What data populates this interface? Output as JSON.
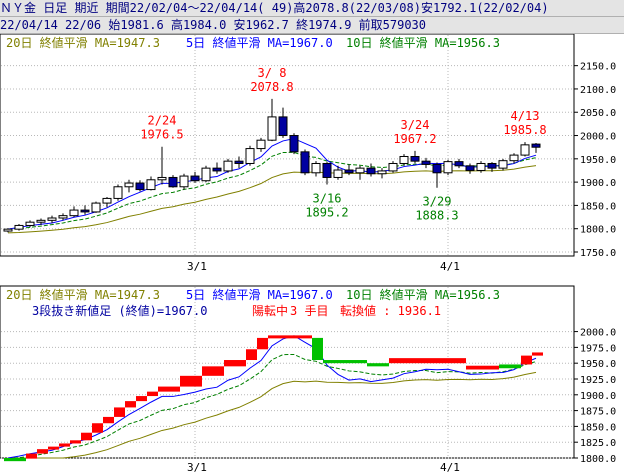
{
  "header": {
    "line1": "ＮＹ金 日足 期近 期間22/02/04～22/04/14( 49)高2078.8(22/03/08)安1792.1(22/02/04)",
    "line2": "22/04/14 22/06 始1981.6 高1984.0 安1962.7 終1974.9 前取579030"
  },
  "colors": {
    "ma20": "#808000",
    "ma5": "#0000ff",
    "ma10": "#008000",
    "up": "#ffffff",
    "down": "#0000a0",
    "annot_high": "#ff0000",
    "annot_low": "#008000",
    "brick_up": "#ff0000",
    "brick_down": "#00c000",
    "grid": "#b8b8b8",
    "axis": "#000000"
  },
  "chart_data": [
    {
      "type": "candlestick",
      "legend": [
        {
          "text": "20日 終値平滑 MA=1947.3",
          "color_key": "ma20"
        },
        {
          "text": "5日 終値平滑 MA=1967.0",
          "color_key": "ma5"
        },
        {
          "text": "10日 終値平滑 MA=1956.3",
          "color_key": "ma10"
        }
      ],
      "ylim": [
        1750,
        2175
      ],
      "y_ticks": [
        1750,
        1800,
        1850,
        1900,
        1950,
        2000,
        2050,
        2100,
        2150
      ],
      "y_tick_labels": [
        "1750.0",
        "1800.0",
        "1850.0",
        "1900.0",
        "1950.0",
        "2000.0",
        "2050.0",
        "2100.0",
        "2150.0"
      ],
      "x_ticks": [
        {
          "index": 17,
          "label": "3/1"
        },
        {
          "index": 40,
          "label": "4/1"
        }
      ],
      "candles": [
        [
          1795,
          1801,
          1792,
          1799
        ],
        [
          1799,
          1810,
          1796,
          1807
        ],
        [
          1807,
          1818,
          1803,
          1814
        ],
        [
          1814,
          1822,
          1808,
          1818
        ],
        [
          1818,
          1828,
          1812,
          1823
        ],
        [
          1823,
          1833,
          1818,
          1828
        ],
        [
          1828,
          1848,
          1825,
          1840
        ],
        [
          1840,
          1850,
          1830,
          1836
        ],
        [
          1836,
          1858,
          1834,
          1855
        ],
        [
          1855,
          1868,
          1846,
          1865
        ],
        [
          1865,
          1895,
          1860,
          1890
        ],
        [
          1890,
          1905,
          1878,
          1898
        ],
        [
          1898,
          1904,
          1880,
          1884
        ],
        [
          1884,
          1912,
          1882,
          1905
        ],
        [
          1905,
          1976,
          1895,
          1910
        ],
        [
          1910,
          1915,
          1888,
          1890
        ],
        [
          1890,
          1918,
          1884,
          1913
        ],
        [
          1913,
          1922,
          1898,
          1903
        ],
        [
          1903,
          1935,
          1900,
          1930
        ],
        [
          1930,
          1942,
          1918,
          1924
        ],
        [
          1924,
          1950,
          1920,
          1945
        ],
        [
          1945,
          1955,
          1930,
          1940
        ],
        [
          1940,
          1978,
          1935,
          1972
        ],
        [
          1972,
          1995,
          1965,
          1990
        ],
        [
          1990,
          2078.8,
          1988,
          2040
        ],
        [
          2040,
          2060,
          1995,
          2000
        ],
        [
          2000,
          2005,
          1960,
          1965
        ],
        [
          1965,
          1970,
          1915,
          1920
        ],
        [
          1920,
          1945,
          1912,
          1940
        ],
        [
          1940,
          1943,
          1895,
          1910
        ],
        [
          1910,
          1935,
          1905,
          1926
        ],
        [
          1926,
          1938,
          1915,
          1920
        ],
        [
          1920,
          1935,
          1905,
          1930
        ],
        [
          1930,
          1940,
          1912,
          1918
        ],
        [
          1918,
          1930,
          1908,
          1924
        ],
        [
          1924,
          1945,
          1920,
          1940
        ],
        [
          1940,
          1960,
          1935,
          1955
        ],
        [
          1955,
          1967,
          1940,
          1945
        ],
        [
          1945,
          1952,
          1930,
          1938
        ],
        [
          1938,
          1942,
          1888,
          1920
        ],
        [
          1920,
          1948,
          1915,
          1944
        ],
        [
          1944,
          1950,
          1930,
          1935
        ],
        [
          1935,
          1940,
          1918,
          1925
        ],
        [
          1925,
          1945,
          1920,
          1940
        ],
        [
          1940,
          1943,
          1922,
          1930
        ],
        [
          1930,
          1950,
          1925,
          1946
        ],
        [
          1946,
          1962,
          1940,
          1958
        ],
        [
          1958,
          1985.8,
          1955,
          1980
        ],
        [
          1981.6,
          1984.0,
          1962.7,
          1974.9
        ]
      ],
      "annotations": [
        {
          "index": 14,
          "date": "2/24",
          "value": "1976.5",
          "kind": "high"
        },
        {
          "index": 24,
          "date": "3/ 8",
          "value": "2078.8",
          "kind": "high"
        },
        {
          "index": 37,
          "date": "3/24",
          "value": "1967.2",
          "kind": "high"
        },
        {
          "index": 47,
          "date": "4/13",
          "value": "1985.8",
          "kind": "high"
        },
        {
          "index": 29,
          "date": "3/16",
          "value": "1895.2",
          "kind": "low"
        },
        {
          "index": 39,
          "date": "3/29",
          "value": "1888.3",
          "kind": "low"
        }
      ]
    },
    {
      "type": "three-line-break",
      "legend": [
        {
          "text": "20日 終値平滑 MA=1947.3",
          "color_key": "ma20"
        },
        {
          "text": "5日 終値平滑 MA=1967.0",
          "color_key": "ma5"
        },
        {
          "text": "10日 終値平滑 MA=1956.3",
          "color_key": "ma10"
        }
      ],
      "status_line": {
        "prefix": "3段抜き新値足 (終値)=1967.0",
        "state": "陽転中",
        "count": "3 手目",
        "reversal": "転換値 : 1936.1"
      },
      "ylim": [
        1800,
        2012
      ],
      "y_ticks": [
        1800,
        1825,
        1850,
        1875,
        1900,
        1925,
        1950,
        1975,
        2000
      ],
      "y_tick_labels": [
        "1800.0",
        "1825.0",
        "1850.0",
        "1875.0",
        "1900.0",
        "1925.0",
        "1950.0",
        "1975.0",
        "2000.0"
      ],
      "x_ticks": [
        {
          "index": 17,
          "label": "3/1"
        },
        {
          "index": 40,
          "label": "4/1"
        }
      ],
      "bricks": [
        {
          "from": 0,
          "to": 2,
          "low": 1795,
          "high": 1800,
          "dir": "down"
        },
        {
          "from": 2,
          "to": 3,
          "low": 1799,
          "high": 1807,
          "dir": "up"
        },
        {
          "from": 3,
          "to": 4,
          "low": 1807,
          "high": 1814,
          "dir": "up"
        },
        {
          "from": 4,
          "to": 5,
          "low": 1814,
          "high": 1818,
          "dir": "up"
        },
        {
          "from": 5,
          "to": 6,
          "low": 1818,
          "high": 1823,
          "dir": "up"
        },
        {
          "from": 6,
          "to": 7,
          "low": 1823,
          "high": 1828,
          "dir": "up"
        },
        {
          "from": 7,
          "to": 8,
          "low": 1828,
          "high": 1840,
          "dir": "up"
        },
        {
          "from": 8,
          "to": 9,
          "low": 1840,
          "high": 1855,
          "dir": "up"
        },
        {
          "from": 9,
          "to": 10,
          "low": 1855,
          "high": 1865,
          "dir": "up"
        },
        {
          "from": 10,
          "to": 11,
          "low": 1865,
          "high": 1880,
          "dir": "up"
        },
        {
          "from": 11,
          "to": 12,
          "low": 1880,
          "high": 1890,
          "dir": "up"
        },
        {
          "from": 12,
          "to": 13,
          "low": 1890,
          "high": 1898,
          "dir": "up"
        },
        {
          "from": 13,
          "to": 14,
          "low": 1898,
          "high": 1905,
          "dir": "up"
        },
        {
          "from": 14,
          "to": 16,
          "low": 1905,
          "high": 1913,
          "dir": "up"
        },
        {
          "from": 16,
          "to": 18,
          "low": 1913,
          "high": 1930,
          "dir": "up"
        },
        {
          "from": 18,
          "to": 20,
          "low": 1930,
          "high": 1945,
          "dir": "up"
        },
        {
          "from": 20,
          "to": 22,
          "low": 1945,
          "high": 1955,
          "dir": "up"
        },
        {
          "from": 22,
          "to": 23,
          "low": 1955,
          "high": 1972,
          "dir": "up"
        },
        {
          "from": 23,
          "to": 24,
          "low": 1972,
          "high": 1990,
          "dir": "up"
        },
        {
          "from": 24,
          "to": 28,
          "low": 1990,
          "high": 1994,
          "dir": "up"
        },
        {
          "from": 28,
          "to": 29,
          "low": 1955,
          "high": 1990,
          "dir": "down"
        },
        {
          "from": 29,
          "to": 33,
          "low": 1950,
          "high": 1955,
          "dir": "down"
        },
        {
          "from": 33,
          "to": 35,
          "low": 1945,
          "high": 1950,
          "dir": "down"
        },
        {
          "from": 35,
          "to": 42,
          "low": 1950,
          "high": 1958,
          "dir": "up"
        },
        {
          "from": 42,
          "to": 45,
          "low": 1940,
          "high": 1946,
          "dir": "up"
        },
        {
          "from": 45,
          "to": 47,
          "low": 1942,
          "high": 1948,
          "dir": "down"
        },
        {
          "from": 47,
          "to": 48,
          "low": 1948,
          "high": 1962,
          "dir": "up"
        },
        {
          "from": 48,
          "to": 49,
          "low": 1962,
          "high": 1967,
          "dir": "up"
        }
      ]
    }
  ]
}
